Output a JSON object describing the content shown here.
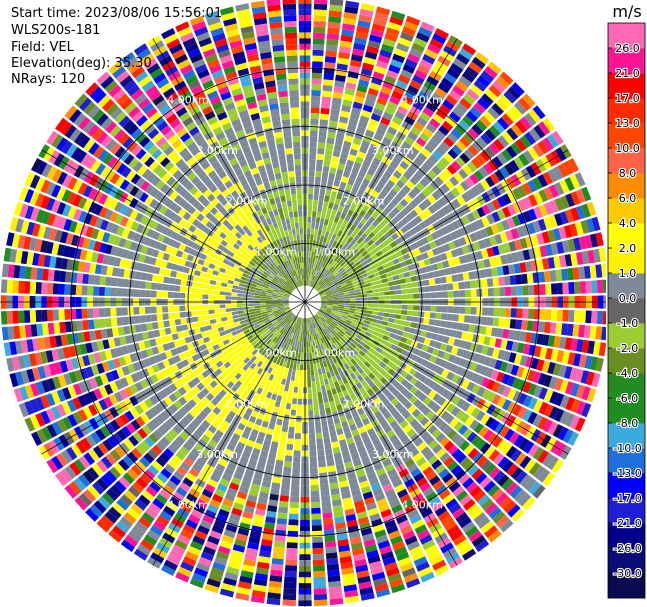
{
  "info": {
    "start_time": "Start time: 2023/08/06 15:56:01",
    "instrument": "WLS200s-181",
    "field": "Field: VEL",
    "elevation": "Elevation(deg): 35.30",
    "nrays": "NRays: 120"
  },
  "chart_data": {
    "type": "ppi_scan",
    "field": "VEL",
    "nrays": 120,
    "range_rings": [
      {
        "range_km": 1.0,
        "label": "1.00km"
      },
      {
        "range_km": 2.0,
        "label": "2.00km"
      },
      {
        "range_km": 3.0,
        "label": "3.00km"
      },
      {
        "range_km": 4.0,
        "label": "4.00km"
      }
    ],
    "max_range_km": 5.2,
    "colorbar": {
      "unit": "m/s",
      "levels": [
        -30.0,
        -26.0,
        -21.0,
        -17.0,
        -13.0,
        -10.0,
        -8.0,
        -6.0,
        -4.0,
        -2.0,
        -1.0,
        0.0,
        1.0,
        2.0,
        4.0,
        6.0,
        8.0,
        10.0,
        13.0,
        17.0,
        21.0,
        26.0
      ],
      "labels": [
        "-30.0",
        "-26.0",
        "-21.0",
        "-17.0",
        "-13.0",
        "-10.0",
        "-8.0",
        "-6.0",
        "-4.0",
        "-2.0",
        "-1.0",
        "0.0",
        "1.0",
        "2.0",
        "4.0",
        "6.0",
        "8.0",
        "10.0",
        "13.0",
        "17.0",
        "21.0",
        "26.0"
      ],
      "colors": [
        "#0a0a50",
        "#0c0c78",
        "#00008c",
        "#1e1ed2",
        "#0000ff",
        "#1e6edc",
        "#3caadc",
        "#1e8c1e",
        "#228b22",
        "#6b8e23",
        "#9acd32",
        "#666666",
        "#7f8a99",
        "#fff000",
        "#ffff00",
        "#ffc800",
        "#ff8c00",
        "#ff6347",
        "#ff4500",
        "#ff2a00",
        "#ff0000",
        "#ff1493",
        "#ff69b4"
      ]
    },
    "velocity_pattern": {
      "near_range_km": [
        0.3,
        1.2
      ],
      "near_negative_mps": -2.0,
      "mid_range_km": [
        1.2,
        2.0
      ],
      "positive_sector_deg": [
        180,
        330
      ],
      "positive_mps": 2.0,
      "negative_sector_mps": -1.5,
      "noise_start_km": 3.2
    }
  }
}
